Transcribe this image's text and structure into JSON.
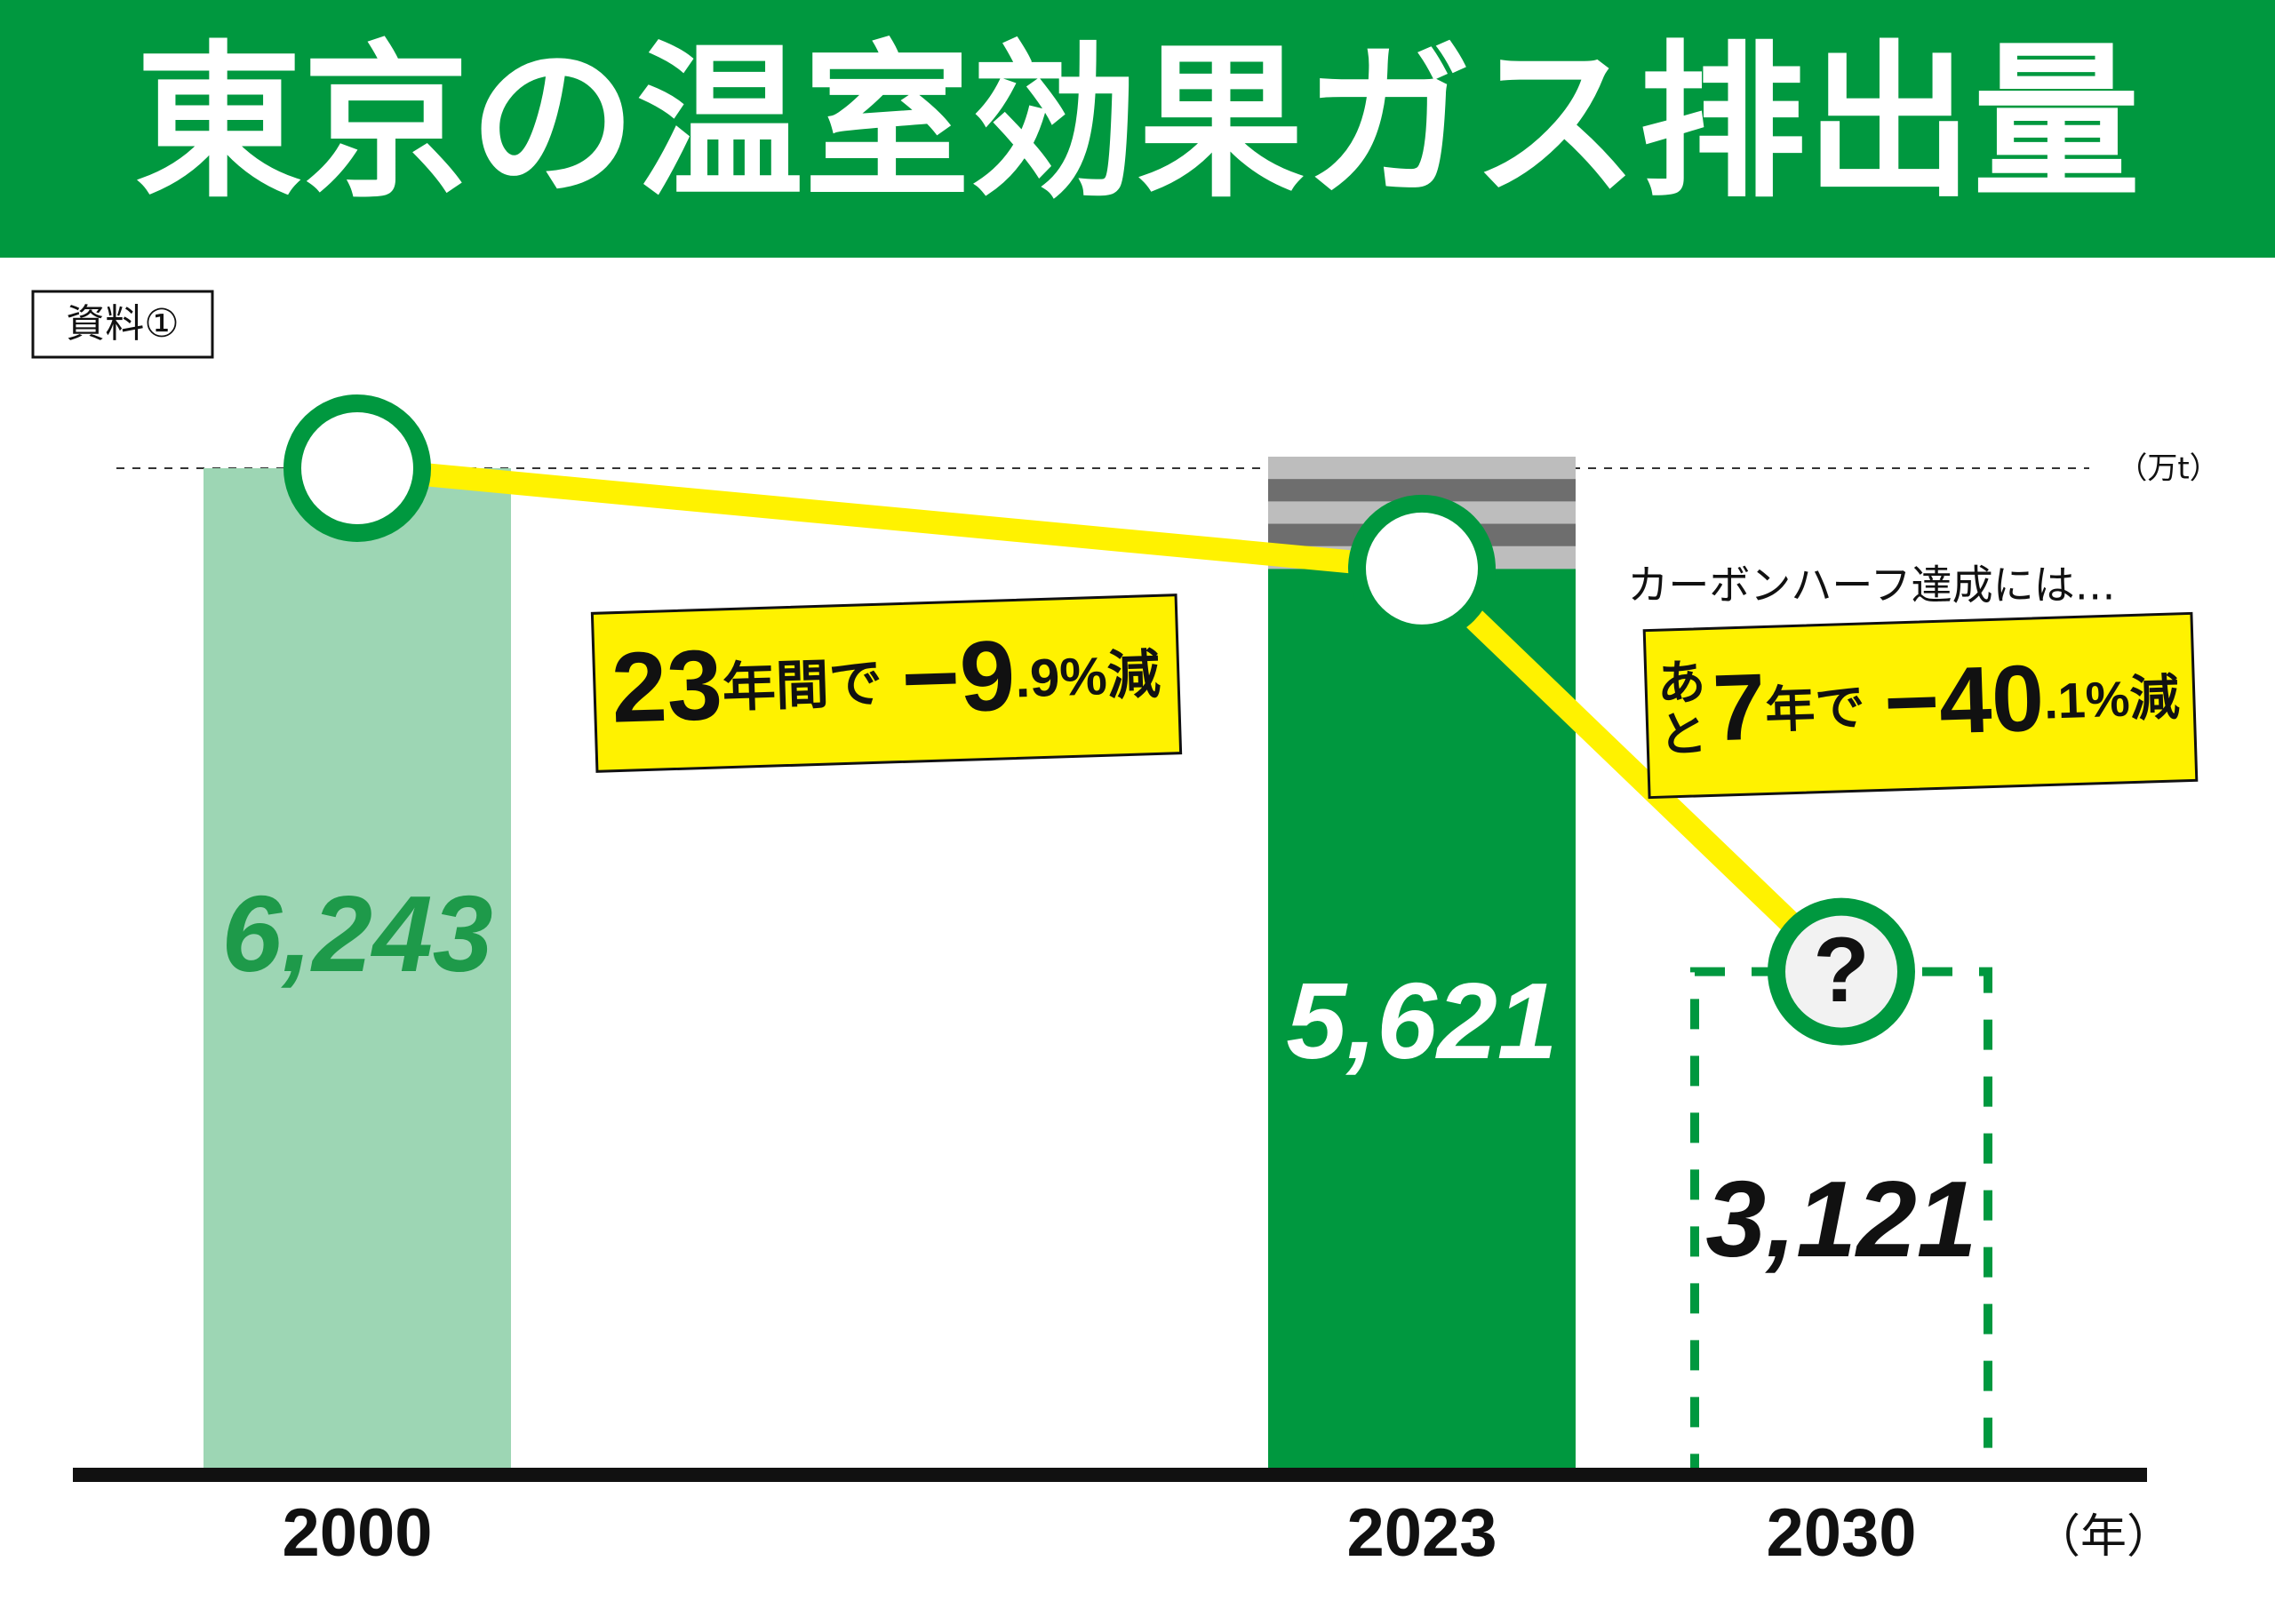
{
  "chart_data": {
    "type": "bar",
    "title": "東京の温室効果ガス排出量",
    "source_label": "資料①",
    "unit_label": "（万t）",
    "x_unit_label": "（年）",
    "categories": [
      "2000",
      "2023",
      "2030"
    ],
    "values": [
      6243,
      5621,
      3121
    ],
    "value_labels": [
      "6,243",
      "5,621",
      "3,121"
    ],
    "colors": [
      "#9dd6b4",
      "#00983f",
      "#00983f"
    ],
    "outline_only": [
      false,
      false,
      true
    ],
    "line_color": "#fff200",
    "projected_marker": "?",
    "note": "カーボンハーフ達成には…",
    "annotations": [
      {
        "parts": [
          "23",
          "年間で",
          "−9",
          ".9",
          "%",
          "減"
        ]
      },
      {
        "prefix": [
          "あ",
          "と"
        ],
        "parts": [
          "7",
          "年で",
          "−40",
          ".1",
          "%",
          "減"
        ]
      }
    ]
  }
}
